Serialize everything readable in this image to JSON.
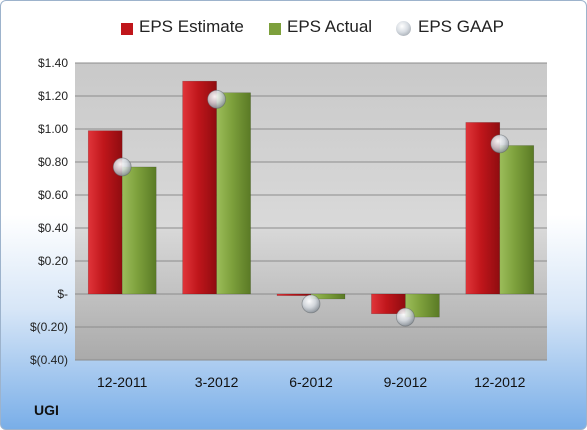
{
  "chart_data": {
    "type": "bar",
    "categories": [
      "12-2011",
      "3-2012",
      "6-2012",
      "9-2012",
      "12-2012"
    ],
    "series": [
      {
        "name": "EPS Estimate",
        "values": [
          0.99,
          1.29,
          -0.01,
          -0.12,
          1.04
        ]
      },
      {
        "name": "EPS Actual",
        "values": [
          0.77,
          1.22,
          -0.03,
          -0.14,
          0.9
        ]
      },
      {
        "name": "EPS GAAP",
        "values": [
          0.77,
          1.18,
          -0.06,
          -0.14,
          0.91
        ]
      }
    ],
    "series_types": [
      "bar",
      "bar",
      "marker"
    ],
    "colors": {
      "estimate": "#c0161b",
      "actual": "#7da03c",
      "gaap": "#b6bcc4"
    },
    "ylim": [
      -0.4,
      1.4
    ],
    "yticks": [
      {
        "value": 1.4,
        "label": "$1.40"
      },
      {
        "value": 1.2,
        "label": "$1.20"
      },
      {
        "value": 1.0,
        "label": "$1.00"
      },
      {
        "value": 0.8,
        "label": "$0.80"
      },
      {
        "value": 0.6,
        "label": "$0.60"
      },
      {
        "value": 0.4,
        "label": "$0.40"
      },
      {
        "value": 0.2,
        "label": "$0.20"
      },
      {
        "value": 0.0,
        "label": "$-"
      },
      {
        "value": -0.2,
        "label": "$(0.20)"
      },
      {
        "value": -0.4,
        "label": "$(0.40)"
      }
    ],
    "legend_position": "top-center",
    "grid": true,
    "ticker": "UGI"
  }
}
